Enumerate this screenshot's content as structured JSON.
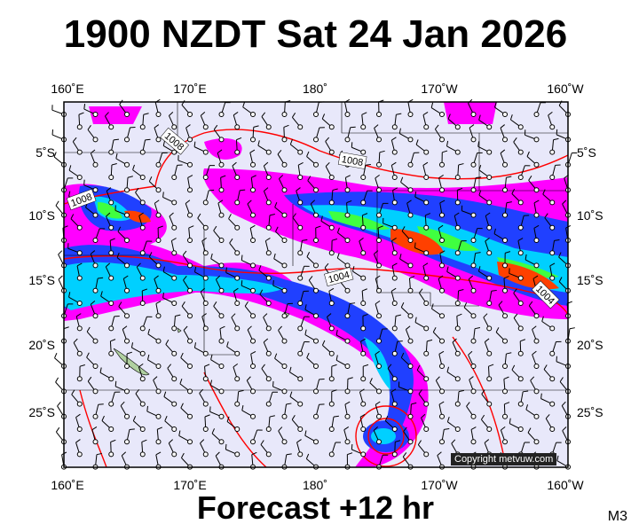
{
  "title": "1900 NZDT Sat 24 Jan 2026",
  "footer": "Forecast +12 hr",
  "model_tag": "M3",
  "copyright": "Copyright metvuw.com",
  "lon_labels": [
    "160˚E",
    "170˚E",
    "180˚",
    "170˚W",
    "160˚W"
  ],
  "lat_labels": [
    "5˚S",
    "10˚S",
    "15˚S",
    "20˚S",
    "25˚S"
  ],
  "isobar_labels": [
    "1008",
    "1008",
    "1008",
    "1004",
    "1004"
  ],
  "colors": {
    "ocean": "#e8e8fa",
    "precip_light": "#ff00ff",
    "precip_mid": "#2040ff",
    "precip_heavy": "#00d0ff",
    "precip_vheavy": "#40ff40",
    "precip_extreme": "#ff4000",
    "isobar": "#ff0000"
  }
}
